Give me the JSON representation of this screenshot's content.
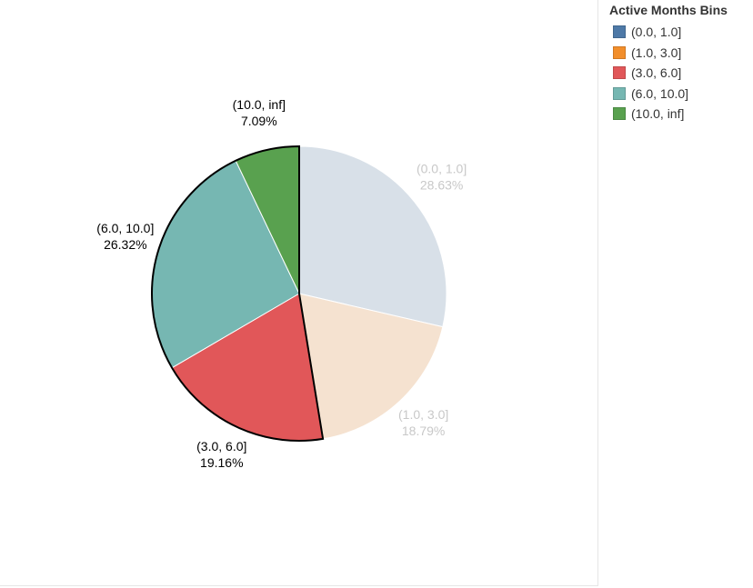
{
  "chart_data": {
    "type": "pie",
    "legend_title": "Active Months Bins",
    "legend_position": "top-right",
    "highlighted": [
      "(3.0, 6.0]",
      "(6.0, 10.0]",
      "(10.0, inf]"
    ],
    "slices": [
      {
        "label": "(0.0, 1.0]",
        "value": 28.63,
        "value_label": "28.63%",
        "color": "#4e79a7",
        "display_color": "#d8e0e8",
        "label_color": "#c8c8c8"
      },
      {
        "label": "(1.0, 3.0]",
        "value": 18.79,
        "value_label": "18.79%",
        "color": "#f28e2b",
        "display_color": "#f5e2d0",
        "label_color": "#c8c8c8"
      },
      {
        "label": "(3.0, 6.0]",
        "value": 19.16,
        "value_label": "19.16%",
        "color": "#e15759",
        "display_color": "#e15759",
        "label_color": "#000000"
      },
      {
        "label": "(6.0, 10.0]",
        "value": 26.32,
        "value_label": "26.32%",
        "color": "#76b7b2",
        "display_color": "#76b7b2",
        "label_color": "#000000"
      },
      {
        "label": "(10.0, inf]",
        "value": 7.09,
        "value_label": "7.09%",
        "color": "#59a14f",
        "display_color": "#59a14f",
        "label_color": "#000000"
      }
    ]
  }
}
